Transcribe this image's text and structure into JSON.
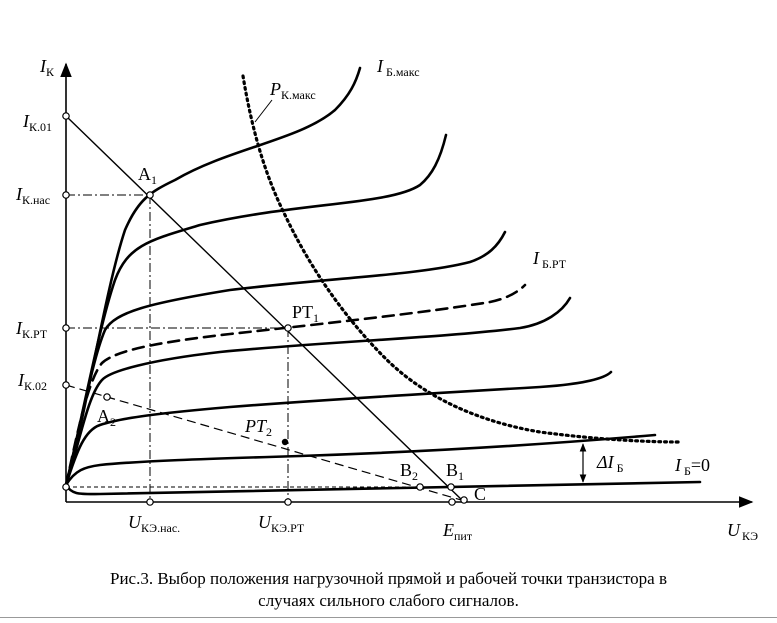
{
  "figure": {
    "axes": {
      "y_label": {
        "main": "I",
        "sub": "К"
      },
      "x_label": {
        "main": "U",
        "sub": "КЭ"
      }
    },
    "y_ticks": [
      {
        "main": "I",
        "sub": "К.01"
      },
      {
        "main": "I",
        "sub": "К.нас"
      },
      {
        "main": "I",
        "sub": "К.РТ"
      },
      {
        "main": "I",
        "sub": "К.02"
      }
    ],
    "x_ticks": [
      {
        "main": "U",
        "sub": "КЭ.нас."
      },
      {
        "main": "U",
        "sub": "КЭ.РТ"
      },
      {
        "main": "E",
        "sub": "пит"
      }
    ],
    "curve_labels": {
      "ib_max": {
        "main": "I",
        "sub": " Б.макс"
      },
      "pk_max": {
        "main": "P",
        "sub": "К.макс"
      },
      "ib_rt": {
        "main": "I",
        "sub": " Б.РТ"
      },
      "delta_ib": {
        "main": "ΔI",
        "sub": " Б"
      },
      "ib_zero": {
        "main": "I",
        "sub": " Б",
        "suffix": "=0"
      }
    },
    "points": {
      "A1": {
        "main": "A",
        "sub": "1"
      },
      "A2": {
        "main": "A",
        "sub": "2"
      },
      "PT1": {
        "main": "PT",
        "sub": "1"
      },
      "PT2": {
        "main": "PT",
        "sub": "2"
      },
      "B1": {
        "main": "B",
        "sub": "1"
      },
      "B2": {
        "main": "B",
        "sub": "2"
      },
      "C": {
        "main": "C",
        "sub": ""
      }
    }
  },
  "caption": {
    "line1": "Рис.3. Выбор положения нагрузочной прямой и рабочей точки транзистора в",
    "line2": "случаях сильного слабого сигналов."
  }
}
